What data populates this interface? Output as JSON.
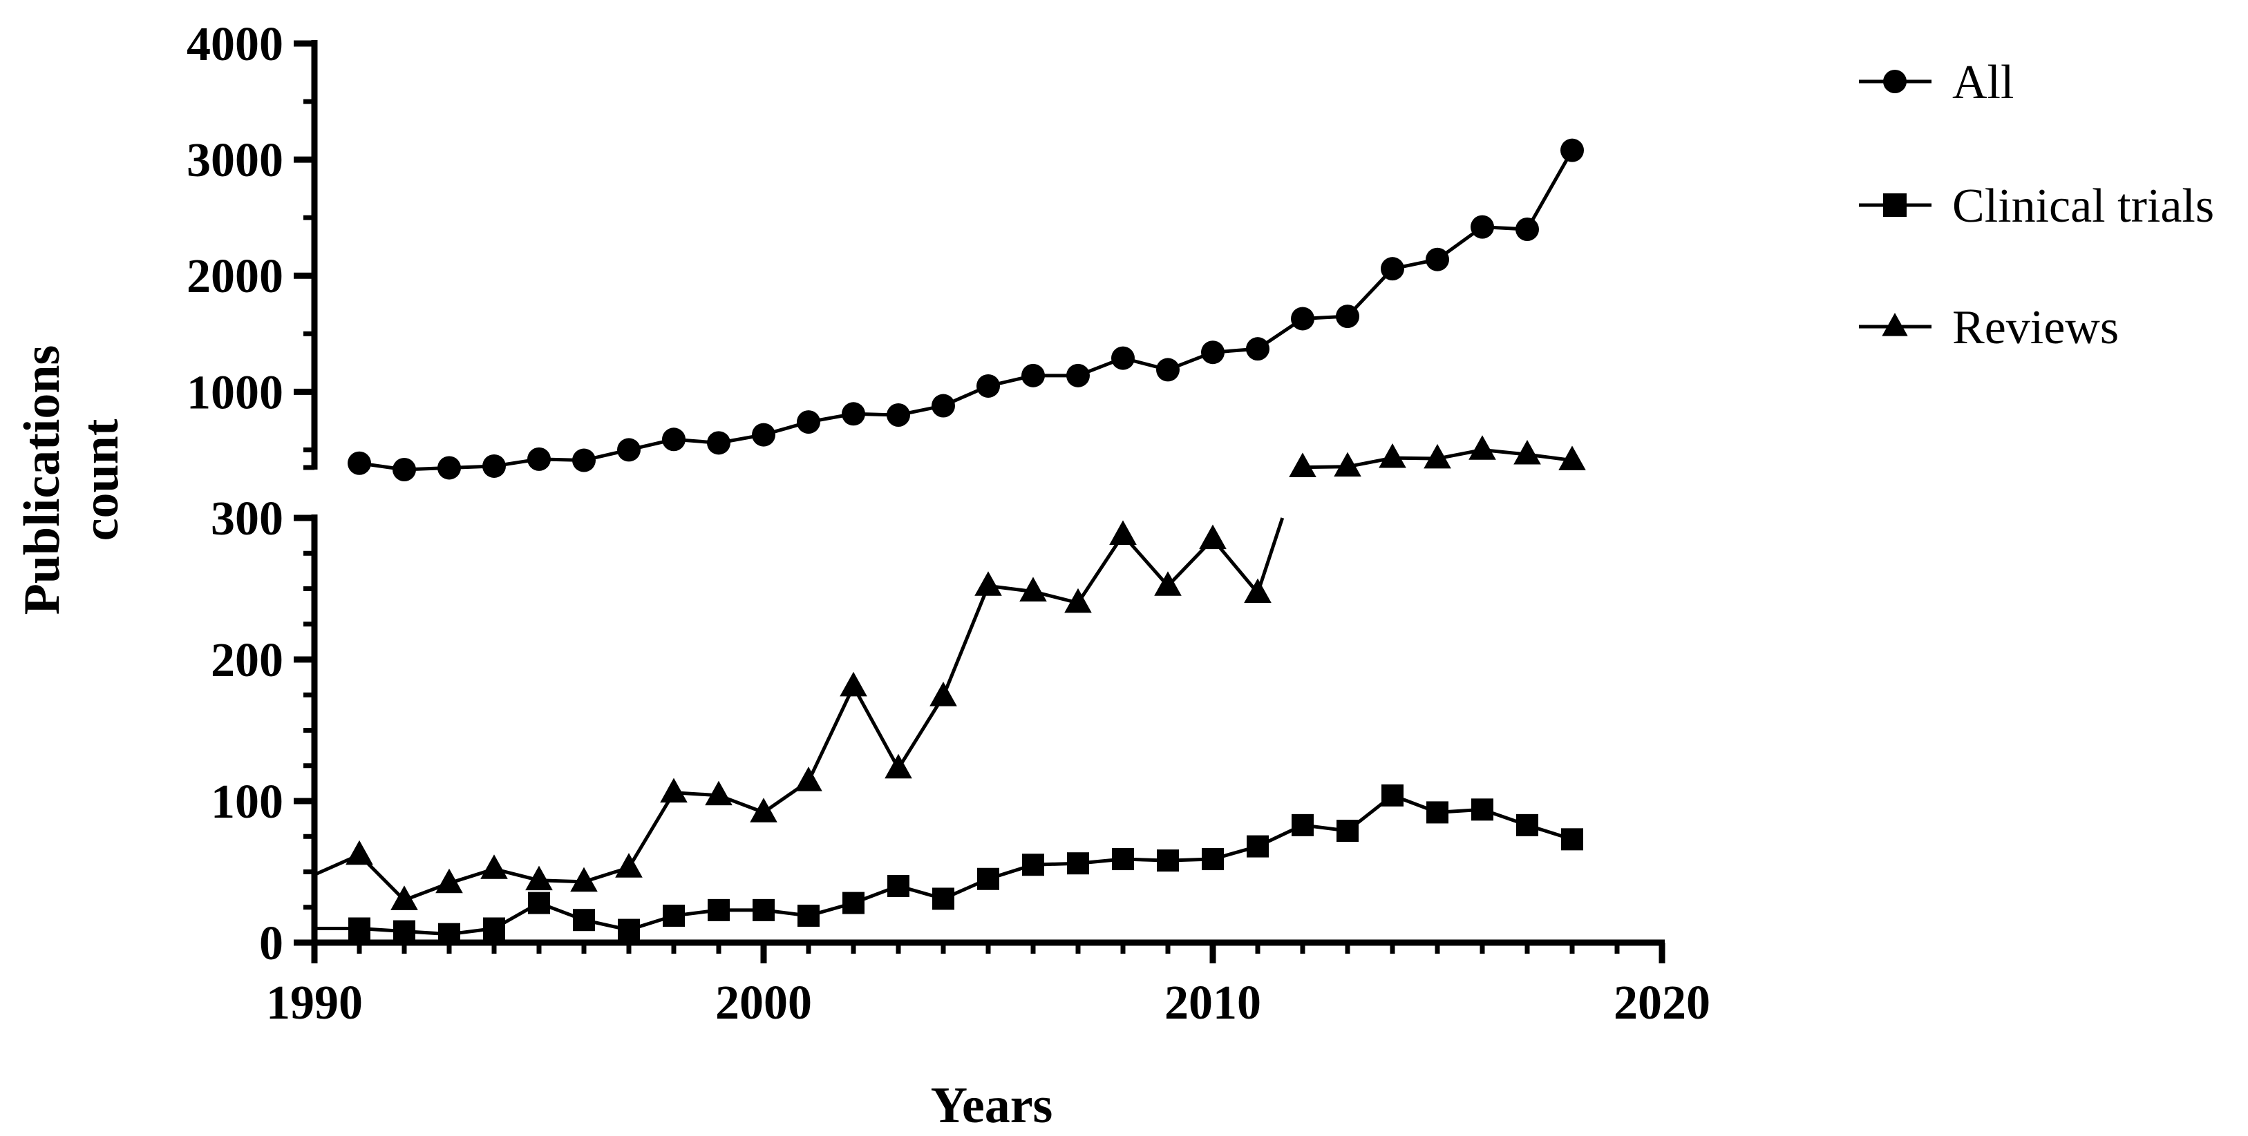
{
  "chart_data": {
    "type": "line",
    "xlabel": "Years",
    "ylabel": "Publications count",
    "x_ticks": [
      "1990",
      "2000",
      "2010",
      "2020"
    ],
    "y_ticks_upper": [
      "1000",
      "2000",
      "3000",
      "4000"
    ],
    "y_ticks_lower": [
      "0",
      "100",
      "200",
      "300"
    ],
    "xlim": [
      1990,
      2020
    ],
    "ylim_lower": [
      0,
      300
    ],
    "ylim_upper": [
      330,
      4000
    ],
    "axis_break": true,
    "legend_position": "right",
    "grid": false,
    "x": [
      1991,
      1992,
      1993,
      1994,
      1995,
      1996,
      1997,
      1998,
      1999,
      2000,
      2001,
      2002,
      2003,
      2004,
      2005,
      2006,
      2007,
      2008,
      2009,
      2010,
      2011,
      2012,
      2013,
      2014,
      2015,
      2016,
      2017,
      2018
    ],
    "series": [
      {
        "name": "All",
        "marker": "circle",
        "values": [
          385,
          330,
          345,
          360,
          420,
          410,
          500,
          590,
          560,
          630,
          740,
          810,
          800,
          880,
          1050,
          1140,
          1140,
          1290,
          1190,
          1340,
          1370,
          1630,
          1650,
          2060,
          2140,
          2420,
          2400,
          3080
        ]
      },
      {
        "name": "Clinical trials",
        "marker": "square",
        "values": [
          10,
          8,
          6,
          10,
          28,
          16,
          9,
          19,
          23,
          23,
          19,
          28,
          40,
          31,
          45,
          55,
          56,
          59,
          58,
          59,
          68,
          83,
          79,
          104,
          92,
          94,
          83,
          73
        ]
      },
      {
        "name": "Reviews",
        "marker": "triangle",
        "values": [
          62,
          30,
          42,
          52,
          44,
          43,
          53,
          106,
          104,
          92,
          114,
          181,
          123,
          174,
          252,
          248,
          240,
          288,
          252,
          285,
          247,
          350,
          355,
          430,
          425,
          500,
          460,
          410
        ]
      }
    ]
  }
}
